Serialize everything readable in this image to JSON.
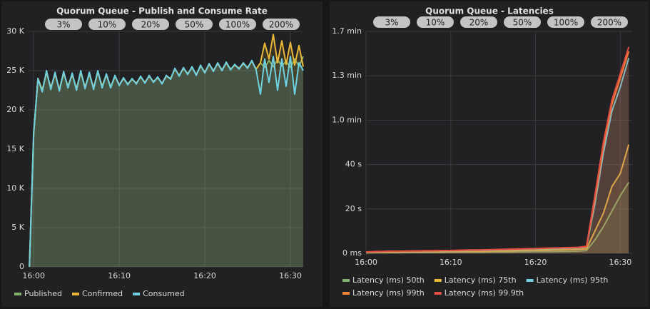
{
  "chart_data": [
    {
      "type": "line",
      "title": "Quorum Queue - Publish and Consume Rate",
      "annotations": [
        "3%",
        "10%",
        "20%",
        "50%",
        "100%",
        "200%"
      ],
      "x": [
        959.5,
        960,
        960.5,
        961,
        961.5,
        962,
        962.5,
        963,
        963.5,
        964,
        964.5,
        965,
        965.5,
        966,
        966.5,
        967,
        967.5,
        968,
        968.5,
        969,
        969.5,
        970,
        970.5,
        971,
        971.5,
        972,
        972.5,
        973,
        973.5,
        974,
        974.5,
        975,
        975.5,
        976,
        976.5,
        977,
        977.5,
        978,
        978.5,
        979,
        979.5,
        980,
        980.5,
        981,
        981.5,
        982,
        982.5,
        983,
        983.5,
        984,
        984.5,
        985,
        985.5,
        986,
        986.5,
        987,
        987.5,
        988,
        988.5,
        989,
        989.5,
        990,
        990.5,
        991,
        991.5
      ],
      "xlim": [
        959.4,
        991.5
      ],
      "xticks": [
        {
          "value": 960,
          "label": "16:00"
        },
        {
          "value": 970,
          "label": "16:10"
        },
        {
          "value": 980,
          "label": "16:20"
        },
        {
          "value": 990,
          "label": "16:30"
        }
      ],
      "ylim": [
        0,
        30000
      ],
      "yticks": [
        0,
        {
          "value": 5000,
          "label": "5 K"
        },
        {
          "value": 10000,
          "label": "10 K"
        },
        {
          "value": 15000,
          "label": "15 K"
        },
        {
          "value": 20000,
          "label": "20 K"
        },
        {
          "value": 25000,
          "label": "25 K"
        },
        {
          "value": 30000,
          "label": "30 K"
        }
      ],
      "grid": true,
      "fill": true,
      "legend": "bottom",
      "series": [
        {
          "name": "Published",
          "color": "#7eb26d",
          "values": [
            0,
            17000,
            24000,
            22500,
            24800,
            22800,
            24600,
            22600,
            24700,
            23000,
            24500,
            22700,
            24800,
            22900,
            24600,
            22800,
            24900,
            23000,
            24500,
            22900,
            24300,
            23200,
            24000,
            23300,
            23900,
            23400,
            24200,
            23500,
            24300,
            23600,
            24100,
            23400,
            24300,
            24000,
            25200,
            24400,
            25300,
            24600,
            25400,
            24500,
            25600,
            24800,
            25800,
            25000,
            25900,
            25100,
            26000,
            25200,
            25700,
            25300,
            25900,
            25400,
            26200,
            25200,
            26000,
            25400,
            26300,
            25500,
            26400,
            25600,
            26200,
            25400,
            26500,
            25600,
            26800
          ]
        },
        {
          "name": "Confirmed",
          "color": "#eab839",
          "values": [
            0,
            17000,
            24000,
            22500,
            24800,
            22800,
            24600,
            22600,
            24700,
            23000,
            24500,
            22700,
            24800,
            22900,
            24600,
            22800,
            24900,
            23000,
            24500,
            22900,
            24300,
            23200,
            24000,
            23300,
            23900,
            23400,
            24200,
            23500,
            24300,
            23600,
            24100,
            23400,
            24300,
            24000,
            25200,
            24400,
            25300,
            24600,
            25400,
            24500,
            25600,
            24800,
            25800,
            25000,
            25900,
            25100,
            26000,
            25200,
            25700,
            25300,
            25900,
            25400,
            26200,
            25200,
            26000,
            28500,
            26500,
            29600,
            26000,
            28800,
            25800,
            28600,
            25700,
            28200,
            25500
          ]
        },
        {
          "name": "Consumed",
          "color": "#6ed0e0",
          "values": [
            0,
            17000,
            24000,
            22300,
            25000,
            22600,
            24800,
            22400,
            24900,
            22800,
            24700,
            22500,
            25000,
            22700,
            24800,
            22600,
            25000,
            22800,
            24600,
            22800,
            24400,
            23100,
            24100,
            23200,
            24000,
            23300,
            24300,
            23400,
            24400,
            23500,
            24200,
            23300,
            24400,
            23900,
            25300,
            24300,
            25400,
            24500,
            25500,
            24400,
            25700,
            24700,
            25900,
            24900,
            26000,
            25000,
            26100,
            25100,
            25800,
            25200,
            26000,
            25300,
            26300,
            25100,
            22000,
            26500,
            23500,
            26800,
            22500,
            26500,
            23000,
            26800,
            22000,
            26000,
            25000
          ]
        }
      ]
    },
    {
      "type": "line",
      "title": "Quorum Queue - Latencies",
      "annotations": [
        "3%",
        "10%",
        "20%",
        "50%",
        "100%",
        "200%"
      ],
      "x": [
        960,
        961,
        962,
        963,
        964,
        965,
        966,
        967,
        968,
        969,
        970,
        971,
        972,
        973,
        974,
        975,
        976,
        977,
        978,
        979,
        980,
        981,
        982,
        983,
        984,
        985,
        986,
        987,
        988,
        989,
        990,
        991
      ],
      "xlim": [
        960,
        991.4
      ],
      "xticks": [
        {
          "value": 960,
          "label": "16:00"
        },
        {
          "value": 970,
          "label": "16:10"
        },
        {
          "value": 980,
          "label": "16:20"
        },
        {
          "value": 990,
          "label": "16:30"
        }
      ],
      "ylim": [
        0,
        100000
      ],
      "yticks": [
        {
          "value": 0,
          "label": "0 ms"
        },
        {
          "value": 20000,
          "label": "20 s"
        },
        {
          "value": 40000,
          "label": "40 s"
        },
        {
          "value": 60000,
          "label": "1.0 min"
        },
        {
          "value": 80000,
          "label": "1.3 min"
        },
        {
          "value": 100000,
          "label": "1.7 min"
        }
      ],
      "grid": true,
      "fill": true,
      "legend": "bottom",
      "series": [
        {
          "name": "Latency (ms) 50th",
          "color": "#7eb26d",
          "values": [
            200,
            300,
            300,
            300,
            300,
            400,
            400,
            400,
            400,
            400,
            500,
            500,
            500,
            500,
            500,
            600,
            600,
            600,
            700,
            700,
            800,
            800,
            800,
            900,
            900,
            1000,
            1200,
            6000,
            12000,
            19000,
            26000,
            32000
          ]
        },
        {
          "name": "Latency (ms) 75th",
          "color": "#eab839",
          "values": [
            300,
            400,
            500,
            500,
            600,
            600,
            600,
            700,
            700,
            700,
            800,
            800,
            800,
            900,
            900,
            1000,
            1000,
            1100,
            1200,
            1300,
            1400,
            1400,
            1500,
            1600,
            1700,
            1800,
            2000,
            10000,
            18000,
            30000,
            36000,
            49000
          ]
        },
        {
          "name": "Latency (ms) 95th",
          "color": "#6ed0e0",
          "values": [
            400,
            600,
            700,
            800,
            800,
            900,
            900,
            1000,
            1000,
            1100,
            1100,
            1200,
            1200,
            1300,
            1300,
            1400,
            1500,
            1600,
            1700,
            1800,
            1900,
            2000,
            2100,
            2200,
            2300,
            2400,
            2800,
            22000,
            45000,
            64000,
            75000,
            88000
          ]
        },
        {
          "name": "Latency (ms) 99th",
          "color": "#ef843c",
          "values": [
            500,
            700,
            800,
            900,
            900,
            1000,
            1000,
            1100,
            1100,
            1200,
            1200,
            1300,
            1400,
            1400,
            1500,
            1600,
            1700,
            1800,
            1900,
            2000,
            2100,
            2200,
            2300,
            2400,
            2500,
            2600,
            3000,
            24000,
            48000,
            67000,
            79000,
            91000
          ]
        },
        {
          "name": "Latency (ms) 99.9th",
          "color": "#e24d42",
          "values": [
            600,
            800,
            900,
            1000,
            1000,
            1100,
            1100,
            1200,
            1200,
            1300,
            1300,
            1400,
            1500,
            1500,
            1600,
            1700,
            1800,
            1900,
            2000,
            2100,
            2200,
            2300,
            2400,
            2500,
            2600,
            2700,
            3200,
            26000,
            50000,
            69000,
            81000,
            93000
          ]
        }
      ]
    }
  ]
}
